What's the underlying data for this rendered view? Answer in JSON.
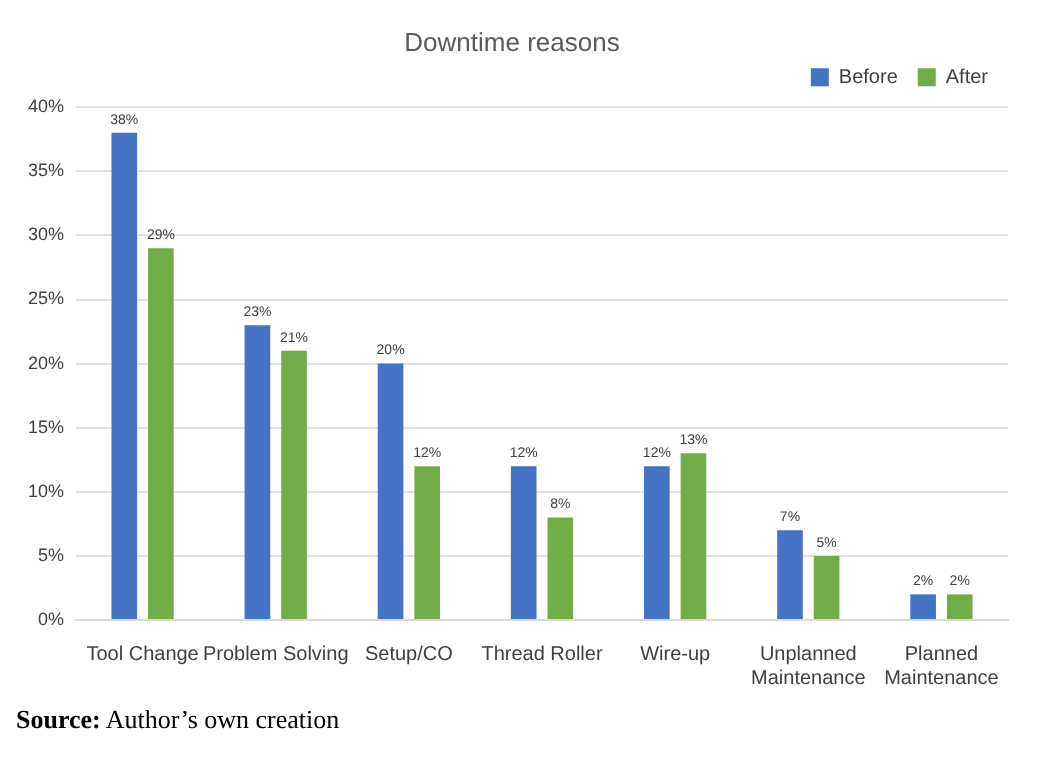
{
  "chart_data": {
    "type": "bar",
    "title": "Downtime reasons",
    "categories": [
      "Tool Change",
      "Problem Solving",
      "Setup/CO",
      "Thread Roller",
      "Wire-up",
      "Unplanned Maintenance",
      "Planned Maintenance"
    ],
    "series": [
      {
        "name": "Before",
        "color": "#4472c4",
        "values": [
          38,
          23,
          20,
          12,
          12,
          7,
          2
        ],
        "value_labels": [
          "38%",
          "23%",
          "20%",
          "12%",
          "12%",
          "7%",
          "2%"
        ]
      },
      {
        "name": "After",
        "color": "#70ad47",
        "values": [
          29,
          21,
          12,
          8,
          13,
          5,
          2
        ],
        "value_labels": [
          "29%",
          "21%",
          "12%",
          "8%",
          "13%",
          "5%",
          "2%"
        ]
      }
    ],
    "ylim": [
      0,
      40
    ],
    "yticks": [
      {
        "value": 0,
        "label": "0%"
      },
      {
        "value": 5,
        "label": "5%"
      },
      {
        "value": 10,
        "label": "10%"
      },
      {
        "value": 15,
        "label": "15%"
      },
      {
        "value": 20,
        "label": "20%"
      },
      {
        "value": 25,
        "label": "25%"
      },
      {
        "value": 30,
        "label": "30%"
      },
      {
        "value": 35,
        "label": "35%"
      },
      {
        "value": 40,
        "label": "40%"
      }
    ],
    "grid": "y",
    "legend": "top right",
    "annotations": [
      "Source: Author’s own creation"
    ]
  }
}
